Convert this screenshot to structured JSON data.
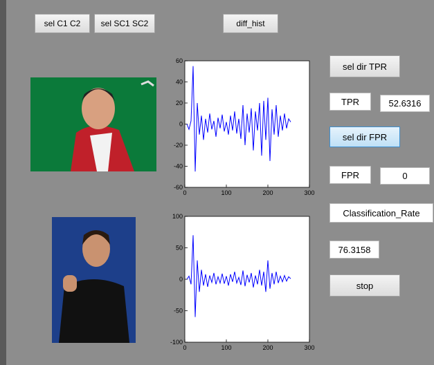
{
  "buttons": {
    "sel_c1c2": "sel C1 C2",
    "sel_sc1sc2": "sel SC1 SC2",
    "diff_hist": "diff_hist",
    "sel_dir_tpr": "sel dir TPR",
    "sel_dir_fpr": "sel dir FPR",
    "stop": "stop"
  },
  "fields": {
    "tpr_label": "TPR",
    "tpr_value": "52.6316",
    "fpr_label": "FPR",
    "fpr_value": "0",
    "rate_label": "Classification_Rate",
    "rate_value": "76.3158"
  },
  "chart_data": [
    {
      "type": "line",
      "color": "#0000ff",
      "x": [
        5,
        10,
        15,
        20,
        25,
        30,
        35,
        40,
        45,
        50,
        55,
        60,
        65,
        70,
        75,
        80,
        85,
        90,
        95,
        100,
        105,
        110,
        115,
        120,
        125,
        130,
        135,
        140,
        145,
        150,
        155,
        160,
        165,
        170,
        175,
        180,
        185,
        190,
        195,
        200,
        205,
        210,
        215,
        220,
        225,
        230,
        235,
        240,
        245,
        250,
        255
      ],
      "values": [
        0,
        -5,
        3,
        55,
        -45,
        20,
        -10,
        8,
        -15,
        5,
        -8,
        10,
        -5,
        3,
        -12,
        6,
        -4,
        9,
        -7,
        2,
        -10,
        8,
        -6,
        12,
        -9,
        5,
        -14,
        18,
        -20,
        10,
        -8,
        15,
        -25,
        12,
        -6,
        20,
        -30,
        22,
        -15,
        25,
        -35,
        14,
        -10,
        18,
        -12,
        8,
        -6,
        10,
        -4,
        5,
        2
      ],
      "xlim": [
        0,
        300
      ],
      "ylim": [
        -60,
        60
      ],
      "xticks": [
        0,
        100,
        200,
        300
      ],
      "yticks": [
        -60,
        -40,
        -20,
        0,
        20,
        40,
        60
      ]
    },
    {
      "type": "line",
      "color": "#0000ff",
      "x": [
        5,
        10,
        15,
        20,
        25,
        30,
        35,
        40,
        45,
        50,
        55,
        60,
        65,
        70,
        75,
        80,
        85,
        90,
        95,
        100,
        105,
        110,
        115,
        120,
        125,
        130,
        135,
        140,
        145,
        150,
        155,
        160,
        165,
        170,
        175,
        180,
        185,
        190,
        195,
        200,
        205,
        210,
        215,
        220,
        225,
        230,
        235,
        240,
        245,
        250,
        255
      ],
      "values": [
        0,
        5,
        -8,
        70,
        -60,
        30,
        -20,
        15,
        -10,
        8,
        -12,
        6,
        -5,
        10,
        -8,
        4,
        -6,
        9,
        -7,
        5,
        -10,
        8,
        -4,
        12,
        -6,
        3,
        -9,
        14,
        -11,
        7,
        -5,
        10,
        -13,
        6,
        -8,
        15,
        -10,
        12,
        -20,
        30,
        -15,
        10,
        -8,
        12,
        -6,
        5,
        -4,
        6,
        -3,
        4,
        1
      ],
      "xlim": [
        0,
        300
      ],
      "ylim": [
        -100,
        100
      ],
      "xticks": [
        0,
        100,
        200,
        300
      ],
      "yticks": [
        -100,
        -50,
        0,
        50,
        100
      ]
    }
  ]
}
